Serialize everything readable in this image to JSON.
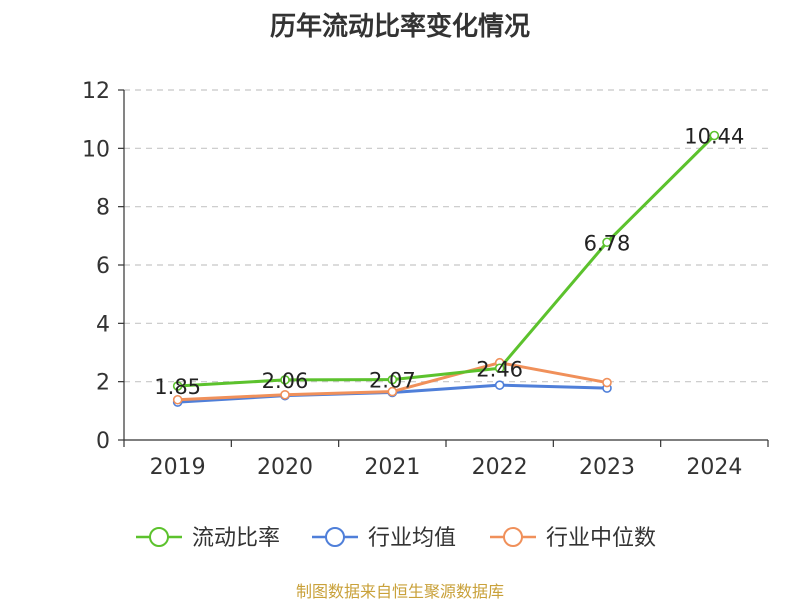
{
  "chart_data": {
    "type": "line",
    "title": "历年流动比率变化情况",
    "categories": [
      "2019",
      "2020",
      "2021",
      "2022",
      "2023",
      "2024"
    ],
    "ylim": [
      0,
      12
    ],
    "yticks": [
      0,
      2,
      4,
      6,
      8,
      10,
      12
    ],
    "grid": true,
    "legend_position": "bottom",
    "series": [
      {
        "name": "流动比率",
        "color": "#5cc22d",
        "values": [
          1.85,
          2.06,
          2.07,
          2.46,
          6.78,
          10.44
        ],
        "labels": [
          "1.85",
          "2.06",
          "2.07",
          "2.46",
          "6.78",
          "10.44"
        ]
      },
      {
        "name": "行业均值",
        "color": "#4f7fd9",
        "values": [
          1.3,
          1.52,
          1.63,
          1.88,
          1.78,
          null
        ]
      },
      {
        "name": "行业中位数",
        "color": "#f0905a",
        "values": [
          1.38,
          1.55,
          1.66,
          2.65,
          1.97,
          null
        ]
      }
    ]
  },
  "source": "制图数据来自恒生聚源数据库"
}
